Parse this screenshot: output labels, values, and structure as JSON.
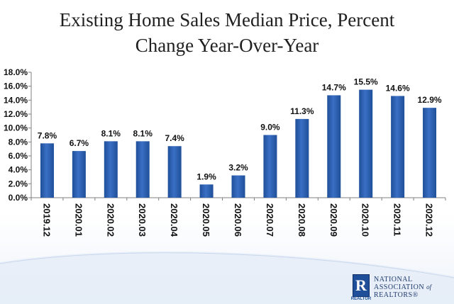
{
  "title_line1": "Existing Home Sales Median Price, Percent",
  "title_line2": "Change Year-Over-Year",
  "logo": {
    "line1": "NATIONAL",
    "line2a": "ASSOCIATION",
    "line2b": "of",
    "line3": "REALTORS",
    "mark": "R",
    "mark_caption": "REALTOR"
  },
  "colors": {
    "bar": "#3a6fc4",
    "bar_dark": "#1f4f99",
    "text": "#111111",
    "axis": "#7f7f7f"
  },
  "chart_data": {
    "type": "bar",
    "title": "Existing Home Sales Median Price, Percent Change Year-Over-Year",
    "xlabel": "",
    "ylabel": "",
    "ylim": [
      0,
      18
    ],
    "yticks": [
      "0.0%",
      "2.0%",
      "4.0%",
      "6.0%",
      "8.0%",
      "10.0%",
      "12.0%",
      "14.0%",
      "16.0%",
      "18.0%"
    ],
    "categories": [
      "2019.12",
      "2020.01",
      "2020.02",
      "2020.03",
      "2020.04",
      "2020.05",
      "2020.06",
      "2020.07",
      "2020.08",
      "2020.09",
      "2020.10",
      "2020.11",
      "2020.12"
    ],
    "values": [
      7.8,
      6.7,
      8.1,
      8.1,
      7.4,
      1.9,
      3.2,
      9.0,
      11.3,
      14.7,
      15.5,
      14.6,
      12.9
    ],
    "data_labels": [
      "7.8%",
      "6.7%",
      "8.1%",
      "8.1%",
      "7.4%",
      "1.9%",
      "3.2%",
      "9.0%",
      "11.3%",
      "14.7%",
      "15.5%",
      "14.6%",
      "12.9%"
    ],
    "grid": false,
    "legend": "none"
  }
}
